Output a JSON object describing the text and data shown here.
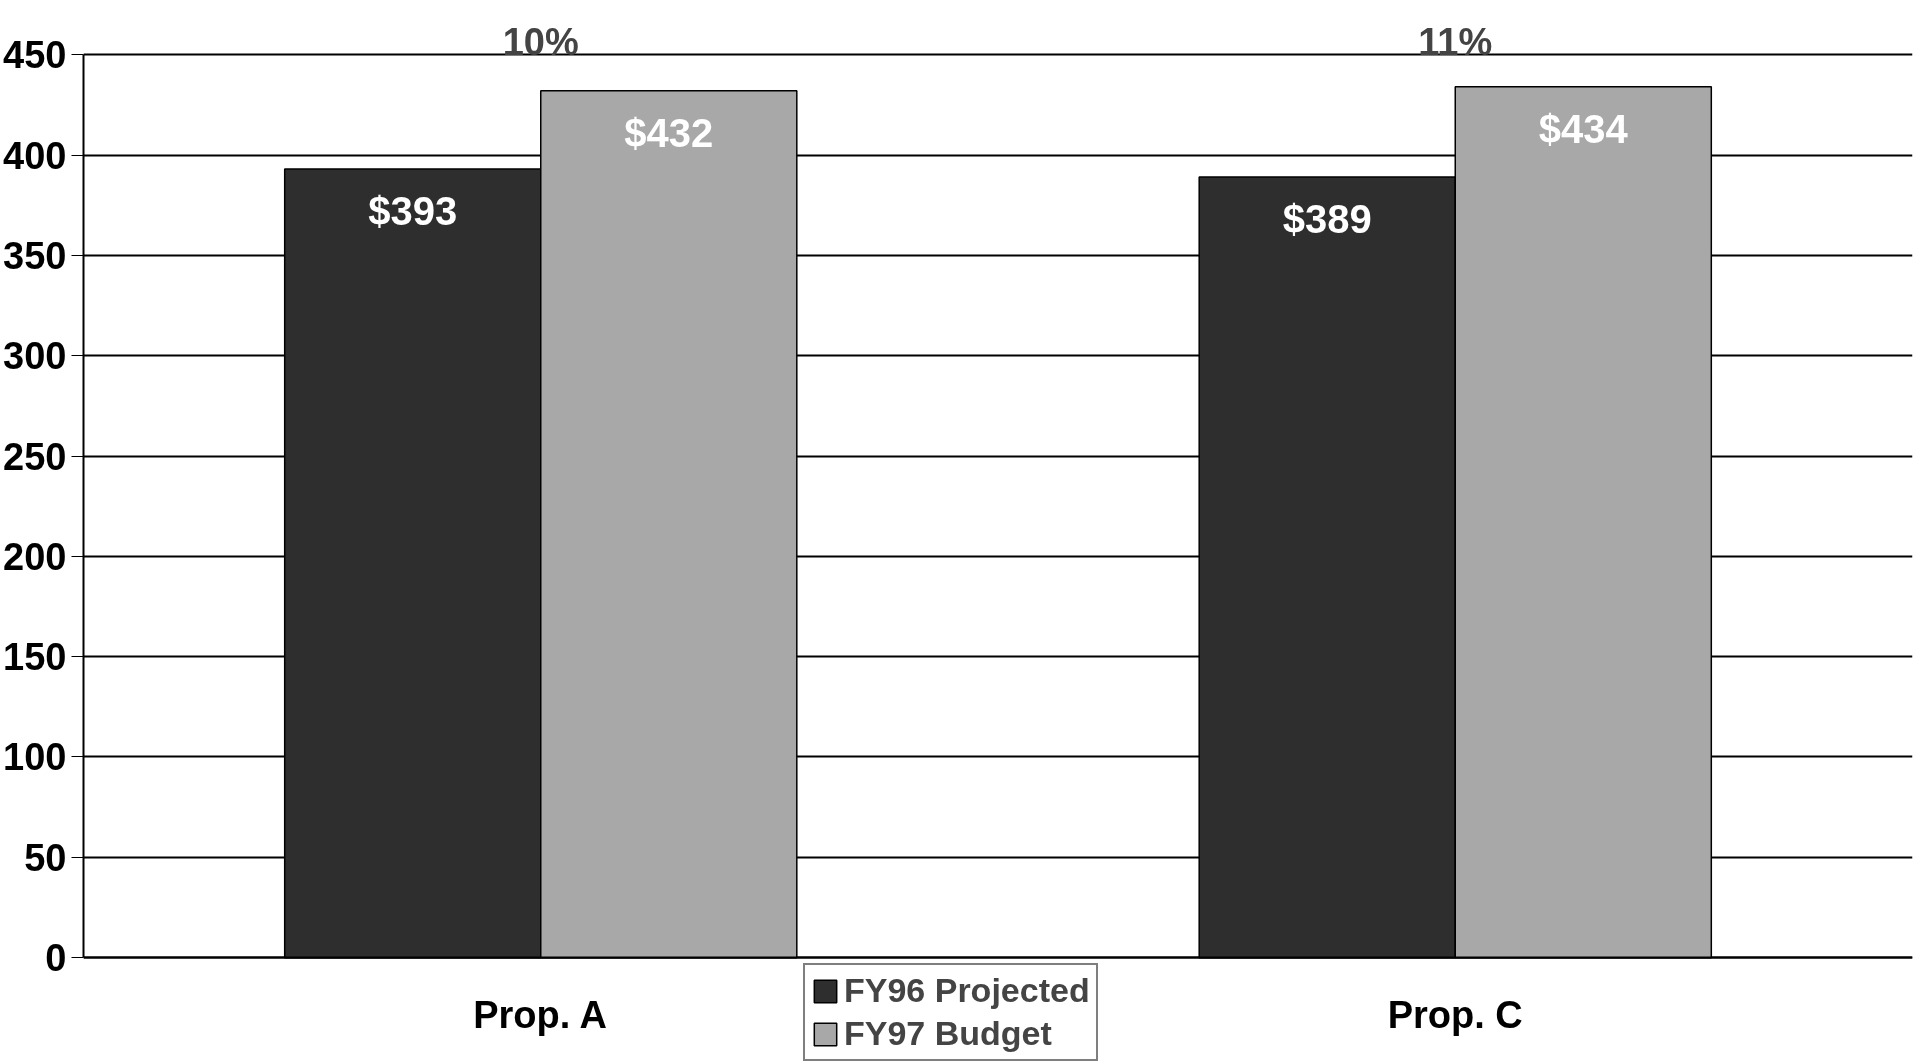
{
  "chart_data": {
    "type": "bar",
    "categories": [
      "Prop. A",
      "Prop. C"
    ],
    "series": [
      {
        "name": "FY96 Projected",
        "color": "#2e2e2e",
        "values": [
          393,
          389
        ],
        "value_labels": [
          "$393",
          "$389"
        ]
      },
      {
        "name": "FY97 Budget",
        "color": "#a8a8a8",
        "values": [
          432,
          434
        ],
        "value_labels": [
          "$432",
          "$434"
        ]
      }
    ],
    "annotations": [
      "10%",
      "11%"
    ],
    "ylim": [
      0,
      450
    ],
    "yticks": [
      0,
      50,
      100,
      150,
      200,
      250,
      300,
      350,
      400,
      450
    ],
    "grid": "y",
    "legend": "bottom"
  }
}
